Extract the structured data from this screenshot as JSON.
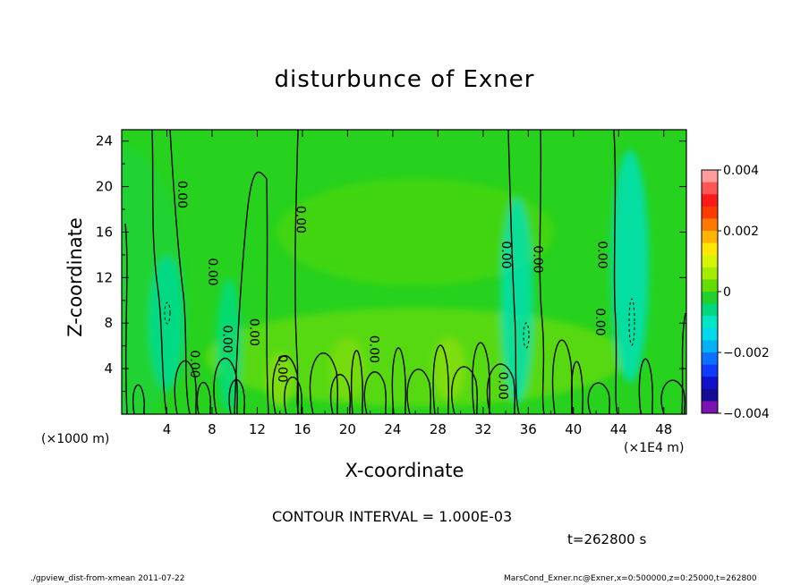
{
  "chart_data": {
    "type": "heatmap",
    "title": "disturbunce of Exner",
    "xlabel": "X-coordinate",
    "ylabel": "Z-coordinate",
    "x_unit_left": "(×1000 m)",
    "x_unit_right": "(×1E4 m)",
    "xlim": [
      0,
      50
    ],
    "ylim": [
      0,
      25
    ],
    "x_ticks": [
      4,
      8,
      12,
      16,
      20,
      24,
      28,
      32,
      36,
      40,
      44,
      48
    ],
    "y_ticks": [
      4,
      8,
      12,
      16,
      20,
      24
    ],
    "contour_labels": [
      {
        "text": "0.00",
        "x": 5.3,
        "y": 19.3
      },
      {
        "text": "0.00",
        "x": 15.8,
        "y": 17.1
      },
      {
        "text": "0.00",
        "x": 8.0,
        "y": 12.5
      },
      {
        "text": "0.00",
        "x": 34.0,
        "y": 14.0
      },
      {
        "text": "0.00",
        "x": 36.8,
        "y": 13.6
      },
      {
        "text": "0.00",
        "x": 42.5,
        "y": 14.0
      },
      {
        "text": "0.00",
        "x": 9.3,
        "y": 6.6
      },
      {
        "text": "0.00",
        "x": 11.7,
        "y": 7.2
      },
      {
        "text": "0.00",
        "x": 6.4,
        "y": 4.4
      },
      {
        "text": "0.00",
        "x": 14.2,
        "y": 4.0
      },
      {
        "text": "0.00",
        "x": 22.3,
        "y": 5.7
      },
      {
        "text": "0.00",
        "x": 33.7,
        "y": 2.5
      },
      {
        "text": "0.00",
        "x": 42.3,
        "y": 8.1
      }
    ],
    "colorbar": {
      "min": -0.004,
      "max": 0.004,
      "tick_labels": [
        "0.004",
        "0.002",
        "0",
        "−0.002",
        "−0.004"
      ],
      "tick_values": [
        0.004,
        0.002,
        0,
        -0.002,
        -0.004
      ],
      "colors": [
        "#ff9d9d",
        "#ff5555",
        "#ff1a1a",
        "#ff3c00",
        "#ff7800",
        "#ffb400",
        "#ffe600",
        "#d7f500",
        "#a4ec00",
        "#63dd00",
        "#22d12b",
        "#00d87e",
        "#00e6c4",
        "#00d9ec",
        "#00b2f5",
        "#0a72ff",
        "#0f3bff",
        "#1111cc",
        "#140c94",
        "#7a14b0"
      ]
    }
  },
  "annotations": {
    "contour_interval": "CONTOUR INTERVAL = 1.000E-03",
    "time": "t=262800 s",
    "footer_left": "./gpview_dist-from-xmean  2011-07-22",
    "footer_right": "MarsCond_Exner.nc@Exner,x=0:500000,z=0:25000,t=262800"
  }
}
